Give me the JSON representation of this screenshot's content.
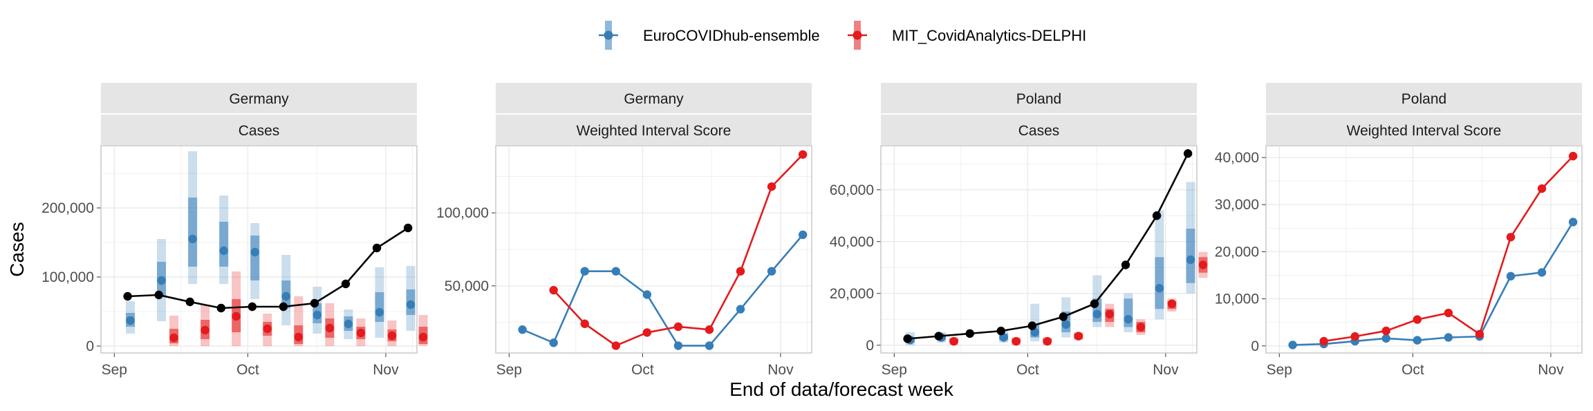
{
  "legend": {
    "items": [
      {
        "name": "EuroCOVIDhub-ensemble",
        "color": "#377EB8"
      },
      {
        "name": "MIT_CovidAnalytics-DELPHI",
        "color": "#E41A1C"
      }
    ]
  },
  "axes": {
    "ylabel": "Cases",
    "xlabel": "End of data/forecast week"
  },
  "colors": {
    "observed": "#000000",
    "ensemble": "#377EB8",
    "delphi": "#E41A1C",
    "strip_bg": "#E5E5E5",
    "grid": "#EBEBEB",
    "panel_border": "#BFBFBF"
  },
  "chart_data": [
    {
      "type": "line",
      "strip_top": "Germany",
      "strip_bottom": "Cases",
      "x_dates": [
        "2021-09-04",
        "2021-09-11",
        "2021-09-18",
        "2021-09-25",
        "2021-10-02",
        "2021-10-09",
        "2021-10-16",
        "2021-10-23",
        "2021-10-30",
        "2021-11-06"
      ],
      "x_ticks": [
        "Sep",
        "Oct",
        "Nov"
      ],
      "y_ticks": [
        "0",
        "100,000",
        "200,000"
      ],
      "ylim": [
        -10000,
        290000
      ],
      "grid": true,
      "observed": [
        72000,
        74000,
        64000,
        55000,
        57000,
        57000,
        62000,
        90000,
        142000,
        171000
      ],
      "forecasts": [
        {
          "name": "EuroCOVIDhub-ensemble",
          "offset_days": 0.6,
          "median": [
            37000,
            95000,
            155000,
            138000,
            136000,
            72000,
            45000,
            32000,
            49000,
            60000
          ],
          "q50": [
            [
              28000,
              48000
            ],
            [
              72000,
              122000
            ],
            [
              115000,
              215000
            ],
            [
              115000,
              180000
            ],
            [
              95000,
              160000
            ],
            [
              55000,
              95000
            ],
            [
              33000,
              62000
            ],
            [
              22000,
              43000
            ],
            [
              35000,
              78000
            ],
            [
              45000,
              82000
            ]
          ],
          "q90": [
            [
              18000,
              65000
            ],
            [
              36000,
              155000
            ],
            [
              90000,
              282000
            ],
            [
              90000,
              218000
            ],
            [
              68000,
              178000
            ],
            [
              30000,
              132000
            ],
            [
              18000,
              86000
            ],
            [
              10000,
              53000
            ],
            [
              12000,
              114000
            ],
            [
              22000,
              116000
            ]
          ]
        },
        {
          "name": "MIT_CovidAnalytics-DELPHI",
          "offset_days": 3.4,
          "median": [
            null,
            12000,
            23000,
            43000,
            25000,
            13000,
            26000,
            19000,
            15000,
            13000
          ],
          "q50": [
            null,
            [
              4000,
              25000
            ],
            [
              10000,
              38000
            ],
            [
              20000,
              68000
            ],
            [
              15000,
              35000
            ],
            [
              3000,
              30000
            ],
            [
              12000,
              40000
            ],
            [
              10000,
              28000
            ],
            [
              7000,
              24000
            ],
            [
              3000,
              28000
            ]
          ],
          "q90": [
            null,
            [
              0,
              44000
            ],
            [
              0,
              60000
            ],
            [
              0,
              108000
            ],
            [
              0,
              47000
            ],
            [
              0,
              72000
            ],
            [
              0,
              62000
            ],
            [
              0,
              40000
            ],
            [
              0,
              37000
            ],
            [
              0,
              45000
            ]
          ]
        }
      ]
    },
    {
      "type": "line",
      "strip_top": "Germany",
      "strip_bottom": "Weighted Interval Score",
      "x_dates": [
        "2021-09-04",
        "2021-09-11",
        "2021-09-18",
        "2021-09-25",
        "2021-10-02",
        "2021-10-09",
        "2021-10-16",
        "2021-10-23",
        "2021-10-30",
        "2021-11-06"
      ],
      "x_ticks": [
        "Sep",
        "Oct",
        "Nov"
      ],
      "y_ticks": [
        "50,000",
        "100,000"
      ],
      "ylim": [
        4000,
        146000
      ],
      "grid": true,
      "series": [
        {
          "name": "EuroCOVIDhub-ensemble",
          "values": [
            20000,
            11000,
            60000,
            60000,
            44000,
            9000,
            9000,
            34000,
            60000,
            85000
          ]
        },
        {
          "name": "MIT_CovidAnalytics-DELPHI",
          "values": [
            null,
            47000,
            24000,
            9000,
            18000,
            22000,
            20000,
            60000,
            118000,
            140000
          ]
        }
      ]
    },
    {
      "type": "line",
      "strip_top": "Poland",
      "strip_bottom": "Cases",
      "x_dates": [
        "2021-09-04",
        "2021-09-11",
        "2021-09-18",
        "2021-09-25",
        "2021-10-02",
        "2021-10-09",
        "2021-10-16",
        "2021-10-23",
        "2021-10-30",
        "2021-11-06"
      ],
      "x_ticks": [
        "Sep",
        "Oct",
        "Nov"
      ],
      "y_ticks": [
        "0",
        "20,000",
        "40,000",
        "60,000"
      ],
      "ylim": [
        -3000,
        77000
      ],
      "grid": true,
      "observed": [
        2500,
        3500,
        4500,
        5500,
        7500,
        11000,
        16000,
        31000,
        50000,
        74000
      ],
      "forecasts": [
        {
          "name": "EuroCOVIDhub-ensemble",
          "offset_days": 0.6,
          "median": [
            2000,
            3000,
            null,
            3000,
            5000,
            8000,
            12000,
            10000,
            22000,
            33000
          ],
          "q50": [
            [
              1000,
              3000
            ],
            [
              2000,
              4000
            ],
            null,
            [
              2000,
              4500
            ],
            [
              3000,
              8000
            ],
            [
              5000,
              13000
            ],
            [
              9000,
              18000
            ],
            [
              7000,
              18000
            ],
            [
              14000,
              34000
            ],
            [
              24000,
              45000
            ]
          ],
          "q90": [
            [
              0,
              5000
            ],
            [
              1000,
              5000
            ],
            null,
            [
              1000,
              6000
            ],
            [
              1500,
              16000
            ],
            [
              3000,
              18500
            ],
            [
              7000,
              27000
            ],
            [
              5000,
              20000
            ],
            [
              10000,
              52000
            ],
            [
              20000,
              63000
            ]
          ]
        },
        {
          "name": "MIT_CovidAnalytics-DELPHI",
          "offset_days": 3.4,
          "median": [
            null,
            1500,
            null,
            1500,
            1500,
            3500,
            12000,
            7000,
            16000,
            31000
          ],
          "q50": [
            null,
            [
              1000,
              2500
            ],
            null,
            [
              1000,
              2500
            ],
            [
              1000,
              2500
            ],
            [
              2500,
              4500
            ],
            [
              9000,
              14000
            ],
            [
              5000,
              9000
            ],
            [
              14000,
              17000
            ],
            [
              28000,
              34000
            ]
          ],
          "q90": [
            null,
            [
              0,
              3000
            ],
            null,
            [
              0,
              3000
            ],
            [
              0,
              3000
            ],
            [
              2000,
              5000
            ],
            [
              7000,
              16000
            ],
            [
              4000,
              10000
            ],
            [
              13000,
              18000
            ],
            [
              26000,
              36000
            ]
          ]
        }
      ]
    },
    {
      "type": "line",
      "strip_top": "Poland",
      "strip_bottom": "Weighted Interval Score",
      "x_dates": [
        "2021-09-04",
        "2021-09-11",
        "2021-09-18",
        "2021-09-25",
        "2021-10-02",
        "2021-10-09",
        "2021-10-16",
        "2021-10-23",
        "2021-10-30",
        "2021-11-06"
      ],
      "x_ticks": [
        "Sep",
        "Oct",
        "Nov"
      ],
      "y_ticks": [
        "0",
        "10,000",
        "20,000",
        "30,000",
        "40,000"
      ],
      "ylim": [
        -1500,
        42500
      ],
      "grid": true,
      "series": [
        {
          "name": "EuroCOVIDhub-ensemble",
          "values": [
            200,
            400,
            1000,
            1600,
            1200,
            1800,
            2000,
            14800,
            15600,
            26300
          ]
        },
        {
          "name": "MIT_CovidAnalytics-DELPHI",
          "values": [
            null,
            1000,
            2000,
            3200,
            5600,
            7000,
            2500,
            23100,
            33400,
            40300
          ]
        }
      ]
    }
  ]
}
